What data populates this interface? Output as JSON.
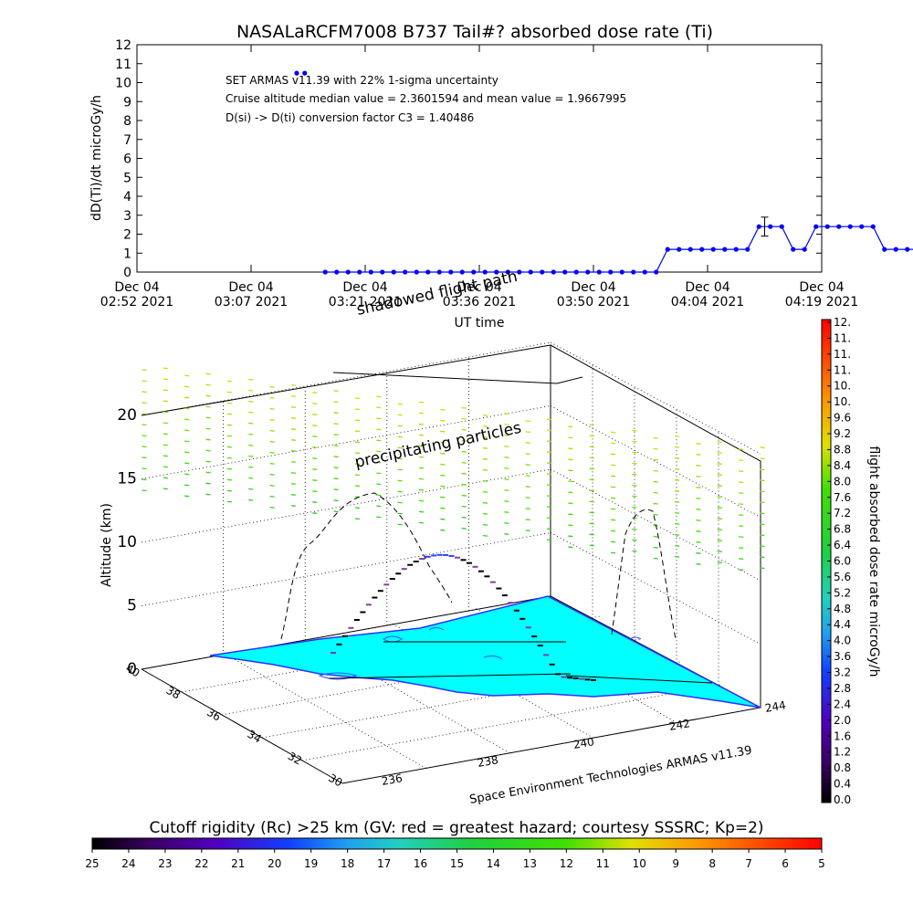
{
  "chart_data": [
    {
      "type": "scatter",
      "title": "NASALaRCFM7008  B737 Tail#? absorbed dose rate (Ti)",
      "ylabel": "dD(Ti)/dt microGy/h",
      "xlabel": "UT time",
      "ylim": [
        0,
        12
      ],
      "yticks": [
        "0",
        "1",
        "2",
        "3",
        "4",
        "5",
        "6",
        "7",
        "8",
        "9",
        "10",
        "11",
        "12"
      ],
      "xticks": [
        {
          "date": "Dec 04",
          "time": "02:52 2021"
        },
        {
          "date": "Dec 04",
          "time": "03:07 2021"
        },
        {
          "date": "Dec 04",
          "time": "03:21 2021"
        },
        {
          "date": "Dec 04",
          "time": "03:36 2021"
        },
        {
          "date": "Dec 04",
          "time": "03:50 2021"
        },
        {
          "date": "Dec 04",
          "time": "04:04 2021"
        },
        {
          "date": "Dec 04",
          "time": "04:19 2021"
        }
      ],
      "annotations": [
        "SET ARMAS v11.39 with 22% 1-sigma uncertainty",
        "Cruise altitude median value = 2.3601594 and mean value = 1.9667995",
        "D(si) -> D(ti) conversion factor C3 = 1.40486"
      ],
      "series": [
        {
          "color": "#0000ff",
          "x": [
            1.4,
            1.47,
            1.65,
            1.75,
            1.85,
            1.95,
            2.05,
            2.15,
            2.25,
            2.35,
            2.45,
            2.55,
            2.65,
            2.75,
            2.85,
            2.95,
            3.05,
            3.15,
            3.25,
            3.35,
            3.45,
            3.55,
            3.65,
            3.75,
            3.85,
            3.95,
            4.05,
            4.15,
            4.25,
            4.35,
            4.45,
            4.55,
            4.65,
            4.75,
            4.85,
            4.95,
            5.05,
            5.15,
            5.25,
            5.35,
            5.45,
            5.55,
            5.65,
            5.75,
            5.85,
            5.95,
            6.05,
            6.15,
            6.25,
            6.35,
            6.45,
            6.55,
            6.65,
            6.75,
            6.85,
            6.95,
            7.05,
            7.15,
            7.25,
            7.35,
            7.45,
            7.55,
            7.65,
            7.75,
            7.85,
            7.95,
            8.05,
            8.15,
            8.25,
            8.35,
            8.45,
            8.55,
            8.65,
            8.75,
            8.85,
            8.95,
            9.05,
            9.15,
            9.25
          ],
          "y": [
            10.5,
            10.5,
            0,
            0,
            0,
            0,
            0,
            0,
            0,
            0,
            0,
            0,
            0,
            0,
            0,
            0,
            0,
            0,
            0,
            0,
            0,
            0,
            0,
            0,
            0,
            0,
            0,
            0,
            0,
            0,
            0,
            0,
            1.2,
            1.2,
            1.2,
            1.2,
            1.2,
            1.2,
            1.2,
            1.2,
            2.4,
            2.4,
            2.4,
            1.2,
            1.2,
            2.4,
            2.4,
            2.4,
            2.4,
            2.4,
            2.4,
            1.2,
            1.2,
            1.2,
            1.2,
            1.2,
            0,
            0,
            0,
            0,
            0,
            0,
            0,
            0,
            0,
            0,
            0,
            0,
            0,
            0,
            0,
            0,
            0,
            0,
            0,
            0,
            0,
            0,
            0
          ],
          "error_bar": {
            "x": 5.5,
            "y": 2.4,
            "low": 1.9,
            "high": 2.9
          }
        }
      ]
    },
    {
      "type": "scatter",
      "projection": "3d",
      "zlabel": "Altitude (km)",
      "zticks": [
        "0",
        "5",
        "10",
        "15",
        "20"
      ],
      "lat_ticks": [
        "40",
        "38",
        "36",
        "34",
        "32",
        "30"
      ],
      "lon_ticks": [
        "236",
        "238",
        "240",
        "242",
        "244"
      ],
      "annotations": [
        "precipitating particles",
        "shadowed flight path",
        "Space Environment Technologies ARMAS v11.39"
      ],
      "colorbar_right": {
        "label": "flight absorbed dose rate microGy/h",
        "ticks": [
          "0.0",
          "0.4",
          "0.8",
          "1.2",
          "1.6",
          "2.0",
          "2.4",
          "2.8",
          "3.2",
          "3.6",
          "4.0",
          "4.4",
          "4.8",
          "5.2",
          "5.6",
          "6.0",
          "6.4",
          "6.8",
          "7.2",
          "7.6",
          "8.0",
          "8.4",
          "8.8",
          "9.2",
          "9.6",
          "10.",
          "10.",
          "11.",
          "11.",
          "11.",
          "12."
        ]
      },
      "colorbar_bottom": {
        "label": "Cutoff rigidity (Rc) >25 km (GV: red = greatest hazard; courtesy SSSRC; Kp=2)",
        "ticks": [
          "25",
          "24",
          "23",
          "22",
          "21",
          "20",
          "19",
          "18",
          "17",
          "16",
          "15",
          "14",
          "13",
          "12",
          "11",
          "10",
          "9",
          "8",
          "7",
          "6",
          "5"
        ]
      }
    }
  ]
}
